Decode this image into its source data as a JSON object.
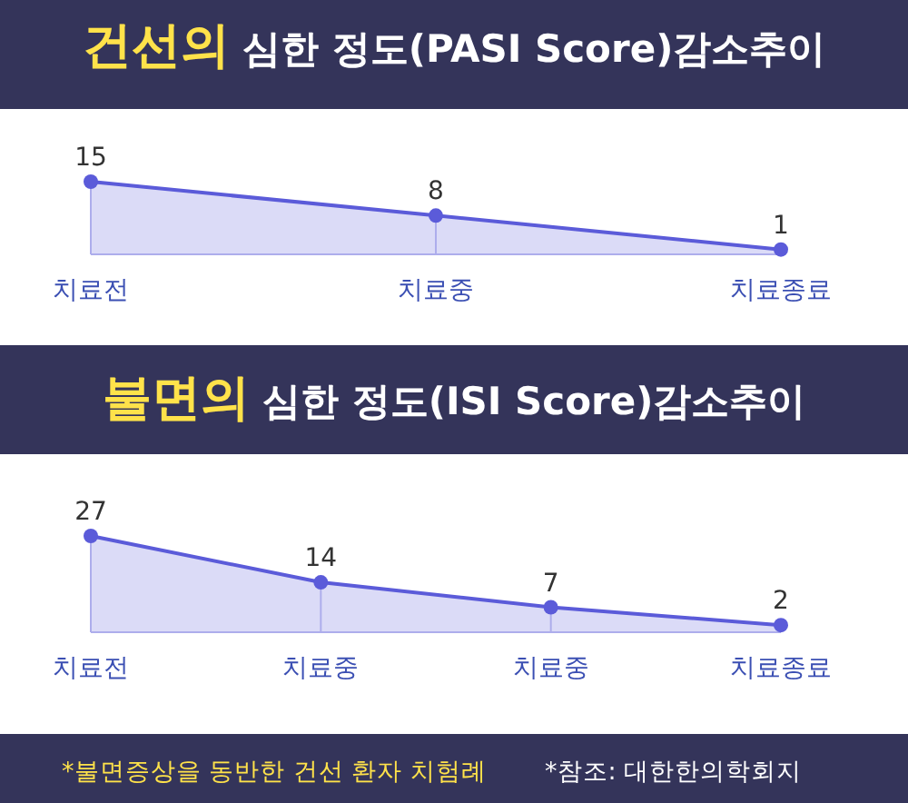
{
  "chart_data": [
    {
      "type": "area",
      "title": "건선의 심한 정도(PASI Score)감소추이",
      "categories": [
        "치료전",
        "치료중",
        "치료종료"
      ],
      "values": [
        15,
        8,
        1
      ],
      "color": "#5b5bd9",
      "data_labels": true,
      "marker": "circle"
    },
    {
      "type": "area",
      "title": "불면의 심한 정도(ISI Score)감소추이",
      "categories": [
        "치료전",
        "치료중",
        "치료중",
        "치료종료"
      ],
      "values": [
        27,
        14,
        7,
        2
      ],
      "color": "#5b5bd9",
      "data_labels": true,
      "marker": "circle",
      "annotations": [
        "*불면증상을 동반한 건선 환자 치험례",
        "*참조: 대한한의학회지"
      ]
    }
  ]
}
